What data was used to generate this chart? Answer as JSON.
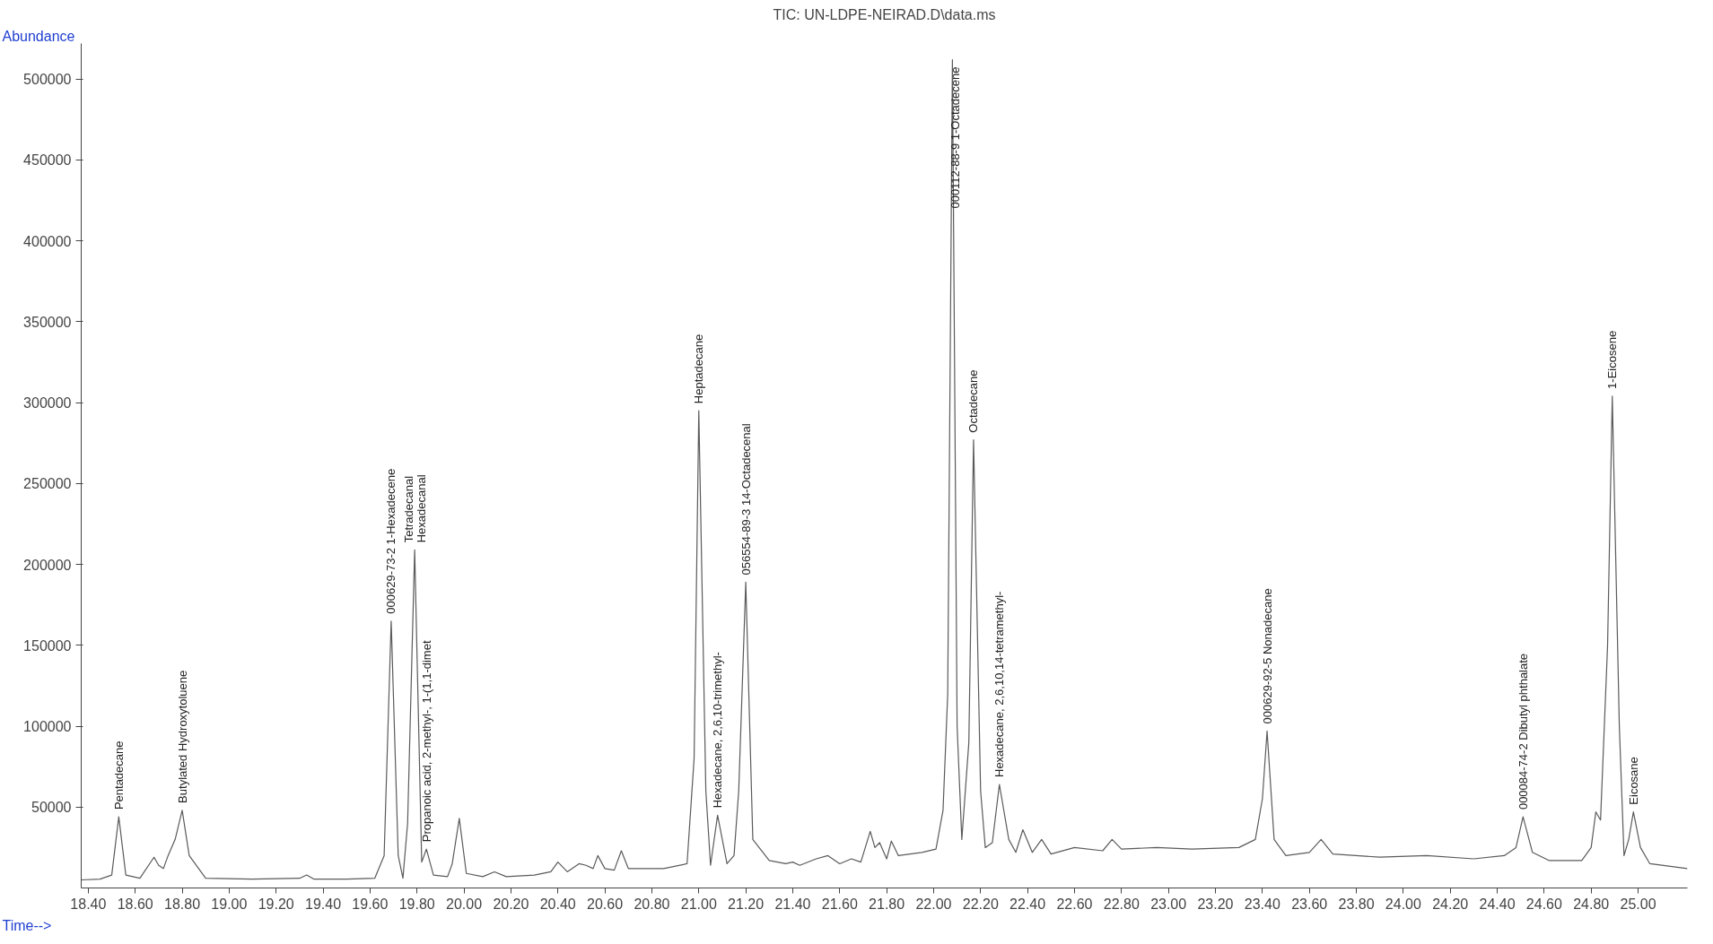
{
  "chart_data": {
    "type": "line",
    "title": "TIC: UN-LDPE-NEIRAD.D\\data.ms",
    "xlabel": "Time-->",
    "ylabel": "Abundance",
    "x": [
      18.37,
      18.45,
      18.5,
      18.53,
      18.56,
      18.62,
      18.68,
      18.7,
      18.72,
      18.74,
      18.77,
      18.8,
      18.83,
      18.9,
      19.1,
      19.3,
      19.33,
      19.36,
      19.5,
      19.62,
      19.66,
      19.69,
      19.72,
      19.74,
      19.76,
      19.79,
      19.82,
      19.84,
      19.87,
      19.93,
      19.95,
      19.98,
      20.01,
      20.08,
      20.13,
      20.18,
      20.3,
      20.37,
      20.4,
      20.44,
      20.49,
      20.52,
      20.55,
      20.57,
      20.6,
      20.64,
      20.67,
      20.7,
      20.85,
      20.95,
      20.98,
      21.0,
      21.03,
      21.05,
      21.08,
      21.12,
      21.15,
      21.17,
      21.2,
      21.23,
      21.3,
      21.37,
      21.4,
      21.43,
      21.5,
      21.55,
      21.6,
      21.65,
      21.69,
      21.73,
      21.75,
      21.77,
      21.8,
      21.82,
      21.85,
      21.95,
      22.01,
      22.04,
      22.06,
      22.08,
      22.1,
      22.12,
      22.15,
      22.17,
      22.2,
      22.22,
      22.25,
      22.28,
      22.32,
      22.35,
      22.38,
      22.42,
      22.46,
      22.5,
      22.6,
      22.72,
      22.76,
      22.8,
      22.95,
      23.1,
      23.3,
      23.37,
      23.4,
      23.42,
      23.45,
      23.5,
      23.6,
      23.65,
      23.7,
      23.9,
      24.1,
      24.3,
      24.43,
      24.48,
      24.51,
      24.55,
      24.62,
      24.76,
      24.8,
      24.82,
      24.84,
      24.87,
      24.89,
      24.92,
      24.94,
      24.96,
      24.98,
      25.01,
      25.05,
      25.21
    ],
    "values": [
      5000,
      5500,
      8000,
      44000,
      8000,
      6000,
      19000,
      14000,
      12000,
      20000,
      30000,
      48000,
      20000,
      6000,
      5500,
      6000,
      8000,
      5500,
      5500,
      6000,
      20000,
      165000,
      20000,
      6000,
      40000,
      209000,
      16000,
      24000,
      8000,
      7000,
      15000,
      43000,
      9000,
      7000,
      10000,
      7000,
      8000,
      10000,
      16000,
      10000,
      15000,
      14000,
      12000,
      20000,
      12000,
      11000,
      23000,
      12000,
      12000,
      15000,
      80000,
      295000,
      60000,
      14000,
      45000,
      15000,
      20000,
      60000,
      189000,
      30000,
      17000,
      15000,
      16000,
      14000,
      18000,
      20000,
      15000,
      18000,
      16000,
      35000,
      25000,
      28000,
      18000,
      29000,
      20000,
      22000,
      24000,
      48000,
      120000,
      512000,
      100000,
      30000,
      90000,
      277000,
      60000,
      25000,
      28000,
      64000,
      30000,
      22000,
      36000,
      22000,
      30000,
      21000,
      25000,
      23000,
      30000,
      24000,
      25000,
      24000,
      25000,
      30000,
      55000,
      97000,
      30000,
      20000,
      22000,
      30000,
      21000,
      19000,
      20000,
      18000,
      20000,
      25000,
      44000,
      22000,
      17000,
      17000,
      25000,
      47000,
      42000,
      150000,
      304000,
      100000,
      20000,
      30000,
      47000,
      25000,
      15000,
      12000
    ],
    "color": "#5a5a5a",
    "xlim": [
      18.37,
      25.21
    ],
    "ylim": [
      0,
      522000
    ],
    "xticks": [
      {
        "value": 18.4,
        "label": "18.40"
      },
      {
        "value": 18.6,
        "label": "18.60"
      },
      {
        "value": 18.8,
        "label": "18.80"
      },
      {
        "value": 19.0,
        "label": "19.00"
      },
      {
        "value": 19.2,
        "label": "19.20"
      },
      {
        "value": 19.4,
        "label": "19.40"
      },
      {
        "value": 19.6,
        "label": "19.60"
      },
      {
        "value": 19.8,
        "label": "19.80"
      },
      {
        "value": 20.0,
        "label": "20.00"
      },
      {
        "value": 20.2,
        "label": "20.20"
      },
      {
        "value": 20.4,
        "label": "20.40"
      },
      {
        "value": 20.6,
        "label": "20.60"
      },
      {
        "value": 20.8,
        "label": "20.80"
      },
      {
        "value": 21.0,
        "label": "21.00"
      },
      {
        "value": 21.2,
        "label": "21.20"
      },
      {
        "value": 21.4,
        "label": "21.40"
      },
      {
        "value": 21.6,
        "label": "21.60"
      },
      {
        "value": 21.8,
        "label": "21.80"
      },
      {
        "value": 22.0,
        "label": "22.00"
      },
      {
        "value": 22.2,
        "label": "22.20"
      },
      {
        "value": 22.4,
        "label": "22.40"
      },
      {
        "value": 22.6,
        "label": "22.60"
      },
      {
        "value": 22.8,
        "label": "22.80"
      },
      {
        "value": 23.0,
        "label": "23.00"
      },
      {
        "value": 23.2,
        "label": "23.20"
      },
      {
        "value": 23.4,
        "label": "23.40"
      },
      {
        "value": 23.6,
        "label": "23.60"
      },
      {
        "value": 23.8,
        "label": "23.80"
      },
      {
        "value": 24.0,
        "label": "24.00"
      },
      {
        "value": 24.2,
        "label": "24.20"
      },
      {
        "value": 24.4,
        "label": "24.40"
      },
      {
        "value": 24.6,
        "label": "24.60"
      },
      {
        "value": 24.8,
        "label": "24.80"
      },
      {
        "value": 25.0,
        "label": "25.00"
      }
    ],
    "yticks": [
      50000,
      100000,
      150000,
      200000,
      250000,
      300000,
      350000,
      400000,
      450000,
      500000
    ],
    "grid": false,
    "marker": "none",
    "line_style": "solid",
    "annotations": [
      {
        "text": "Pentadecane",
        "x": 18.53,
        "y": 44000
      },
      {
        "text": "Butylated Hydroxytoluene",
        "x": 18.8,
        "y": 48000
      },
      {
        "text": "000629-73-2 1-Hexadecene",
        "x": 19.69,
        "y": 165000
      },
      {
        "text": "Tetradecanal",
        "x": 19.79,
        "y": 209000
      },
      {
        "text": "Hexadecanal",
        "x": 19.79,
        "y": 209000
      },
      {
        "text": "Propanoic acid, 2-methyl-, 1-(1,1-dimet",
        "x": 19.84,
        "y": 24000
      },
      {
        "text": "Heptadecane",
        "x": 21.0,
        "y": 295000
      },
      {
        "text": "Hexadecane, 2,6,10-trimethyl-",
        "x": 21.08,
        "y": 45000
      },
      {
        "text": "056554-89-3 14-Octadecenal",
        "x": 21.2,
        "y": 189000
      },
      {
        "text": "000112-88-9 1-Octadecene",
        "x": 22.08,
        "y": 512000
      },
      {
        "text": "Octadecane",
        "x": 22.17,
        "y": 277000
      },
      {
        "text": "Hexadecane, 2,6,10,14-tetramethyl-",
        "x": 22.28,
        "y": 64000
      },
      {
        "text": "000629-92-5 Nonadecane",
        "x": 23.42,
        "y": 97000
      },
      {
        "text": "000084-74-2 Dibutyl phthalate",
        "x": 24.51,
        "y": 44000
      },
      {
        "text": "1-Eicosene",
        "x": 24.89,
        "y": 304000
      },
      {
        "text": "Eicosane",
        "x": 24.98,
        "y": 47000
      }
    ]
  }
}
